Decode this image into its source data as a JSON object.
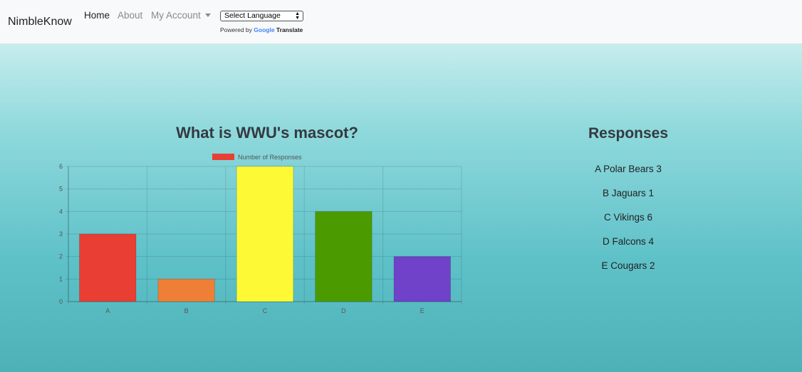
{
  "navbar": {
    "brand": "NimbleKnow",
    "links": {
      "home": "Home",
      "about": "About",
      "account": "My Account"
    },
    "language_select": "Select Language",
    "powered_by": {
      "prefix": "Powered by",
      "google": "Google",
      "suffix": "Translate"
    }
  },
  "question": {
    "title": "What is WWU's mascot?"
  },
  "responses": {
    "title": "Responses",
    "items": [
      "A Polar Bears 3",
      "B Jaguars 1",
      "C Vikings 6",
      "D Falcons 4",
      "E Cougars 2"
    ]
  },
  "chart_data": {
    "type": "bar",
    "title": "What is WWU's mascot?",
    "categories": [
      "A",
      "B",
      "C",
      "D",
      "E"
    ],
    "series": [
      {
        "name": "Number of Responses",
        "values": [
          3,
          1,
          6,
          4,
          2
        ]
      }
    ],
    "bar_colors": [
      "#e83e33",
      "#ef7f37",
      "#fdfa35",
      "#4b9b00",
      "#6f42c9"
    ],
    "legend_color": "#e83e33",
    "ylim": [
      0,
      6
    ],
    "yticks": [
      0,
      1,
      2,
      3,
      4,
      5,
      6
    ],
    "grid": true,
    "legend_position": "top",
    "xlabel": "",
    "ylabel": ""
  }
}
